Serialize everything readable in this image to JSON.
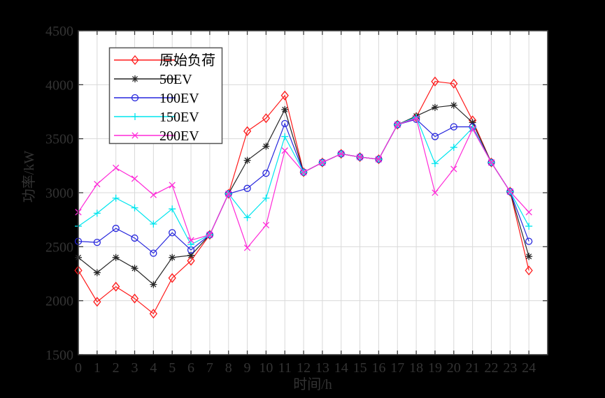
{
  "figure": {
    "background_color": "#000000",
    "plot_background_color": "#ffffff",
    "grid_color": "#d9d9d9",
    "axis_color": "#3c3c3c",
    "tick_label_color": "#333333",
    "legend_background": "#ffffff",
    "legend_border_color": "#555555",
    "legend_text_color": "#000000"
  },
  "chart_data": {
    "type": "line",
    "title": "",
    "xlabel": "时间/h",
    "ylabel": "功率/kW",
    "xlim": [
      0,
      25
    ],
    "ylim": [
      1500,
      4500
    ],
    "x_ticks": [
      0,
      1,
      2,
      3,
      4,
      5,
      6,
      7,
      8,
      9,
      10,
      11,
      12,
      13,
      14,
      15,
      16,
      17,
      18,
      19,
      20,
      21,
      22,
      23,
      24
    ],
    "y_ticks": [
      1500,
      2000,
      2500,
      3000,
      3500,
      4000,
      4500
    ],
    "grid": true,
    "legend_position": "top-left",
    "x": [
      0,
      1,
      2,
      3,
      4,
      5,
      6,
      7,
      8,
      9,
      10,
      11,
      12,
      13,
      14,
      15,
      16,
      17,
      18,
      19,
      20,
      21,
      22,
      23,
      24
    ],
    "series": [
      {
        "name": "原始负荷",
        "color": "#ff1a1a",
        "marker": "diamond",
        "values": [
          2280,
          1990,
          2130,
          2020,
          1880,
          2210,
          2370,
          2610,
          2990,
          3570,
          3690,
          3900,
          3190,
          3280,
          3360,
          3330,
          3310,
          3630,
          3700,
          4030,
          4010,
          3670,
          3280,
          3010,
          2280
        ]
      },
      {
        "name": "50EV",
        "color": "#262626",
        "marker": "asterisk",
        "values": [
          2400,
          2260,
          2400,
          2300,
          2150,
          2400,
          2420,
          2610,
          2990,
          3300,
          3430,
          3770,
          3190,
          3280,
          3360,
          3330,
          3310,
          3630,
          3710,
          3790,
          3810,
          3650,
          3280,
          3010,
          2410
        ]
      },
      {
        "name": "100EV",
        "color": "#2727dd",
        "marker": "circle",
        "values": [
          2550,
          2540,
          2670,
          2580,
          2440,
          2630,
          2470,
          2610,
          2990,
          3040,
          3180,
          3640,
          3190,
          3280,
          3360,
          3330,
          3310,
          3630,
          3680,
          3520,
          3610,
          3610,
          3280,
          3010,
          2550
        ]
      },
      {
        "name": "150EV",
        "color": "#00e5ee",
        "marker": "plus",
        "values": [
          2690,
          2810,
          2950,
          2860,
          2710,
          2850,
          2520,
          2610,
          2990,
          2770,
          2950,
          3520,
          3190,
          3280,
          3360,
          3330,
          3310,
          3630,
          3700,
          3270,
          3420,
          3600,
          3280,
          3010,
          2690
        ]
      },
      {
        "name": "200EV",
        "color": "#ff2ad8",
        "marker": "x",
        "values": [
          2820,
          3080,
          3230,
          3130,
          2980,
          3070,
          2560,
          2610,
          2990,
          2490,
          2700,
          3390,
          3190,
          3280,
          3360,
          3330,
          3310,
          3630,
          3690,
          3000,
          3220,
          3590,
          3280,
          3010,
          2820
        ]
      }
    ]
  }
}
